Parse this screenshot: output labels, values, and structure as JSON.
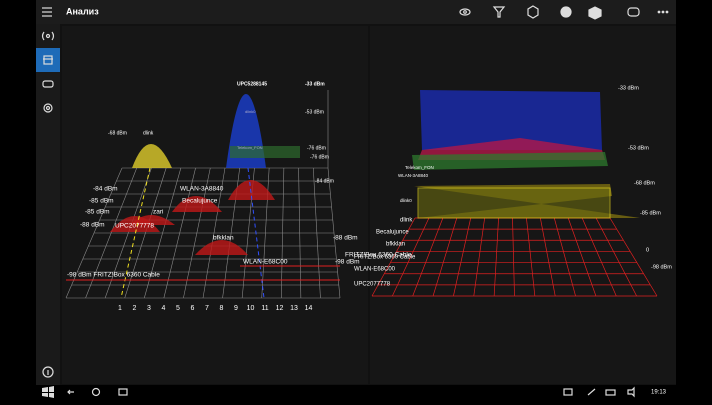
{
  "header": {
    "title": "Анализ"
  },
  "left_view": {
    "labels": [
      "UPC5288145",
      "-33 dBm",
      "-68 dBm",
      "dlink",
      "-53 dBm",
      "-76 dBm",
      "-76 dBm",
      "-84 dBm",
      "-84 dBm",
      "WLAN-3A8840",
      "-85 dBm",
      "Becalujunce",
      "-85 dBm",
      "zari",
      "-88 dBm",
      "UPC2077778",
      "bfkklan",
      "-88 dBm",
      "FRITZ!Box 6360 Cable",
      "-98 dBm",
      "WLAN-E68C00",
      "-98 dBm FRITZ!Box 6360 Cable",
      "dlink0",
      "Telekom_FON"
    ],
    "channels": [
      "1",
      "2",
      "3",
      "4",
      "5",
      "6",
      "7",
      "8",
      "9",
      "10",
      "11",
      "12",
      "13",
      "14"
    ]
  },
  "right_view": {
    "names": [
      "Telekom_FON",
      "WLAN-3A8840",
      "dlink0",
      "dlink",
      "Becalujunce",
      "bfkklan",
      "FRITZ!Box 6360 Cable",
      "WLAN-E68C00",
      "UPC2077778"
    ],
    "levels": [
      "-33 dBm",
      "-53 dBm",
      "-68 dBm",
      "-85 dBm",
      "0",
      "-98 dBm"
    ]
  },
  "taskbar": {
    "time": "19:13"
  }
}
